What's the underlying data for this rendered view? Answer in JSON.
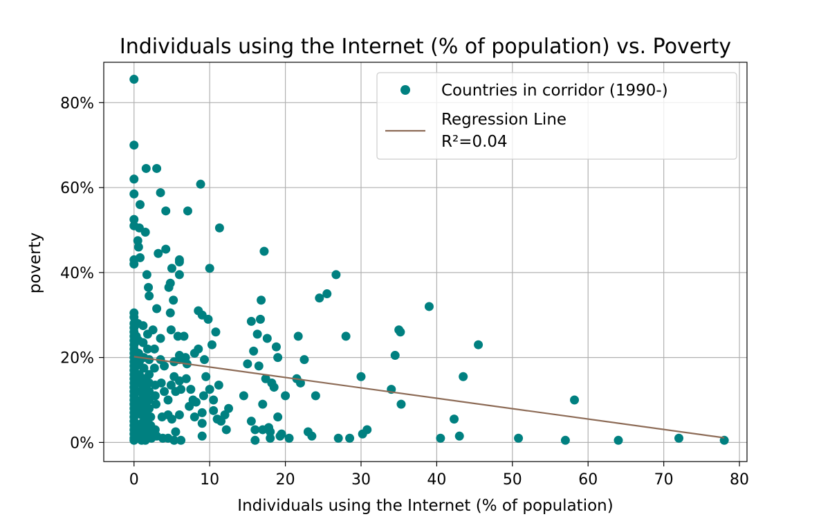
{
  "chart_data": {
    "type": "scatter",
    "title": "Individuals using the Internet (% of population) vs. Poverty",
    "xlabel": "Individuals using the Internet (% of population)",
    "ylabel": "poverty",
    "xlim": [
      -4,
      81
    ],
    "ylim": [
      -4.5,
      89.5
    ],
    "x_ticks": [
      0,
      10,
      20,
      30,
      40,
      50,
      60,
      70,
      80
    ],
    "y_ticks": [
      0,
      20,
      40,
      60,
      80
    ],
    "y_tick_labels": [
      "0%",
      "20%",
      "40%",
      "60%",
      "80%"
    ],
    "grid": true,
    "legend_position": "top-right",
    "colors": {
      "points": "#008080",
      "regression": "#8c6a55"
    },
    "series": [
      {
        "name": "Countries in corridor (1990-)",
        "kind": "scatter",
        "points": [
          [
            0.0,
            85.5
          ],
          [
            0.0,
            70.0
          ],
          [
            0.0,
            62.0
          ],
          [
            0.0,
            58.5
          ],
          [
            0.0,
            52.5
          ],
          [
            0.0,
            51.0
          ],
          [
            0.0,
            43.0
          ],
          [
            0.0,
            42.0
          ],
          [
            0.0,
            30.5
          ],
          [
            0.0,
            29.5
          ],
          [
            0.0,
            28.0
          ],
          [
            0.0,
            27.0
          ],
          [
            0.0,
            26.0
          ],
          [
            0.0,
            25.0
          ],
          [
            0.0,
            24.0
          ],
          [
            0.0,
            23.0
          ],
          [
            0.0,
            22.0
          ],
          [
            0.0,
            21.0
          ],
          [
            0.0,
            20.0
          ],
          [
            0.0,
            19.0
          ],
          [
            0.0,
            18.0
          ],
          [
            0.0,
            17.0
          ],
          [
            0.0,
            16.0
          ],
          [
            0.0,
            15.0
          ],
          [
            0.0,
            14.0
          ],
          [
            0.0,
            13.0
          ],
          [
            0.0,
            12.0
          ],
          [
            0.0,
            11.0
          ],
          [
            0.0,
            10.0
          ],
          [
            0.0,
            9.0
          ],
          [
            0.0,
            8.0
          ],
          [
            0.0,
            7.0
          ],
          [
            0.0,
            6.0
          ],
          [
            0.0,
            5.0
          ],
          [
            0.0,
            4.0
          ],
          [
            0.0,
            3.0
          ],
          [
            0.0,
            2.0
          ],
          [
            0.0,
            1.0
          ],
          [
            0.0,
            0.5
          ],
          [
            0.3,
            25.0
          ],
          [
            0.3,
            18.0
          ],
          [
            0.3,
            12.0
          ],
          [
            0.3,
            8.0
          ],
          [
            0.3,
            3.0
          ],
          [
            0.3,
            1.0
          ],
          [
            0.5,
            47.5
          ],
          [
            0.6,
            46.0
          ],
          [
            0.7,
            50.5
          ],
          [
            0.8,
            56.0
          ],
          [
            0.8,
            43.5
          ],
          [
            0.5,
            28.0
          ],
          [
            0.6,
            24.0
          ],
          [
            0.6,
            21.0
          ],
          [
            0.7,
            19.0
          ],
          [
            0.7,
            16.0
          ],
          [
            0.8,
            14.0
          ],
          [
            0.8,
            12.0
          ],
          [
            0.9,
            10.0
          ],
          [
            0.9,
            8.5
          ],
          [
            1.0,
            6.5
          ],
          [
            1.0,
            4.5
          ],
          [
            1.0,
            2.5
          ],
          [
            1.0,
            1.0
          ],
          [
            1.0,
            0.5
          ],
          [
            1.2,
            27.5
          ],
          [
            1.2,
            23.5
          ],
          [
            1.3,
            20.0
          ],
          [
            1.3,
            17.5
          ],
          [
            1.4,
            15.0
          ],
          [
            1.4,
            13.0
          ],
          [
            1.5,
            11.0
          ],
          [
            1.5,
            9.0
          ],
          [
            1.5,
            7.0
          ],
          [
            1.5,
            5.0
          ],
          [
            1.5,
            3.0
          ],
          [
            1.5,
            1.5
          ],
          [
            1.5,
            0.5
          ],
          [
            1.5,
            49.5
          ],
          [
            1.6,
            64.5
          ],
          [
            1.7,
            39.5
          ],
          [
            1.9,
            36.5
          ],
          [
            2.0,
            34.5
          ],
          [
            1.8,
            25.5
          ],
          [
            1.8,
            22.0
          ],
          [
            2.0,
            19.5
          ],
          [
            2.0,
            16.0
          ],
          [
            2.0,
            14.0
          ],
          [
            2.0,
            12.0
          ],
          [
            2.0,
            10.0
          ],
          [
            2.0,
            8.0
          ],
          [
            2.2,
            6.0
          ],
          [
            2.2,
            4.0
          ],
          [
            2.2,
            2.0
          ],
          [
            2.3,
            1.0
          ],
          [
            2.5,
            26.5
          ],
          [
            2.7,
            22.0
          ],
          [
            2.7,
            17.5
          ],
          [
            2.8,
            13.5
          ],
          [
            2.8,
            11.0
          ],
          [
            2.9,
            9.0
          ],
          [
            2.8,
            3.0
          ],
          [
            3.0,
            1.5
          ],
          [
            3.0,
            64.5
          ],
          [
            3.0,
            31.5
          ],
          [
            3.2,
            44.5
          ],
          [
            3.5,
            58.8
          ],
          [
            3.5,
            24.5
          ],
          [
            3.5,
            19.5
          ],
          [
            3.6,
            14.0
          ],
          [
            3.7,
            6.0
          ],
          [
            3.8,
            1.0
          ],
          [
            4.0,
            18.0
          ],
          [
            4.0,
            12.0
          ],
          [
            4.2,
            54.5
          ],
          [
            4.2,
            45.5
          ],
          [
            4.5,
            6.5
          ],
          [
            4.5,
            10.0
          ],
          [
            4.5,
            1.0
          ],
          [
            4.6,
            36.5
          ],
          [
            4.8,
            37.5
          ],
          [
            4.8,
            30.5
          ],
          [
            4.9,
            26.5
          ],
          [
            4.9,
            13.5
          ],
          [
            5.0,
            41.0
          ],
          [
            5.0,
            5.5
          ],
          [
            5.2,
            33.5
          ],
          [
            5.3,
            19.0
          ],
          [
            5.3,
            15.5
          ],
          [
            5.3,
            0.5
          ],
          [
            5.5,
            2.5
          ],
          [
            5.5,
            12.0
          ],
          [
            5.8,
            25.0
          ],
          [
            6.0,
            43.0
          ],
          [
            6.0,
            42.5
          ],
          [
            6.0,
            39.5
          ],
          [
            6.0,
            20.5
          ],
          [
            6.0,
            19.5
          ],
          [
            6.0,
            14.5
          ],
          [
            6.0,
            6.5
          ],
          [
            6.2,
            12.5
          ],
          [
            6.2,
            0.5
          ],
          [
            6.6,
            25.0
          ],
          [
            6.8,
            20.0
          ],
          [
            6.9,
            15.0
          ],
          [
            7.0,
            18.5
          ],
          [
            7.1,
            54.5
          ],
          [
            7.3,
            8.5
          ],
          [
            7.5,
            12.5
          ],
          [
            7.8,
            10.0
          ],
          [
            8.0,
            6.0
          ],
          [
            8.2,
            9.5
          ],
          [
            8.0,
            21.0
          ],
          [
            8.5,
            22.0
          ],
          [
            8.5,
            31.0
          ],
          [
            8.8,
            60.8
          ],
          [
            9.0,
            7.0
          ],
          [
            9.0,
            4.5
          ],
          [
            9.0,
            30.0
          ],
          [
            9.0,
            1.5
          ],
          [
            9.2,
            11.0
          ],
          [
            9.3,
            19.5
          ],
          [
            9.5,
            15.5
          ],
          [
            9.8,
            29.0
          ],
          [
            10.0,
            41.0
          ],
          [
            10.0,
            12.5
          ],
          [
            10.3,
            23.0
          ],
          [
            10.5,
            10.0
          ],
          [
            10.5,
            7.5
          ],
          [
            10.8,
            26.0
          ],
          [
            11.0,
            5.5
          ],
          [
            11.2,
            13.5
          ],
          [
            11.3,
            50.5
          ],
          [
            11.5,
            5.0
          ],
          [
            12.0,
            6.5
          ],
          [
            12.2,
            3.0
          ],
          [
            12.5,
            8.0
          ],
          [
            14.5,
            11.0
          ],
          [
            15.0,
            18.5
          ],
          [
            15.5,
            28.5
          ],
          [
            15.5,
            5.0
          ],
          [
            15.8,
            21.5
          ],
          [
            16.0,
            3.0
          ],
          [
            16.0,
            0.5
          ],
          [
            16.3,
            25.5
          ],
          [
            16.5,
            18.0
          ],
          [
            16.7,
            29.0
          ],
          [
            16.8,
            33.5
          ],
          [
            17.0,
            3.0
          ],
          [
            17.0,
            9.0
          ],
          [
            17.2,
            45.0
          ],
          [
            17.4,
            15.0
          ],
          [
            17.6,
            24.5
          ],
          [
            17.8,
            3.5
          ],
          [
            18.0,
            1.0
          ],
          [
            18.0,
            2.5
          ],
          [
            18.2,
            14.0
          ],
          [
            18.5,
            13.0
          ],
          [
            18.8,
            22.5
          ],
          [
            19.0,
            20.0
          ],
          [
            19.0,
            6.0
          ],
          [
            19.3,
            1.5
          ],
          [
            19.5,
            2.0
          ],
          [
            20.0,
            11.0
          ],
          [
            20.5,
            1.0
          ],
          [
            21.5,
            15.0
          ],
          [
            21.7,
            25.0
          ],
          [
            22.0,
            14.0
          ],
          [
            22.5,
            19.5
          ],
          [
            23.0,
            2.5
          ],
          [
            23.5,
            1.5
          ],
          [
            24.0,
            11.0
          ],
          [
            24.5,
            34.0
          ],
          [
            25.5,
            35.0
          ],
          [
            26.7,
            39.5
          ],
          [
            27.0,
            1.0
          ],
          [
            28.0,
            25.0
          ],
          [
            28.5,
            1.0
          ],
          [
            30.0,
            15.5
          ],
          [
            30.2,
            2.0
          ],
          [
            30.8,
            3.0
          ],
          [
            34.0,
            12.5
          ],
          [
            34.5,
            20.5
          ],
          [
            35.0,
            26.5
          ],
          [
            35.2,
            26.0
          ],
          [
            35.3,
            9.0
          ],
          [
            39.0,
            32.0
          ],
          [
            40.5,
            1.0
          ],
          [
            42.3,
            5.5
          ],
          [
            43.0,
            1.5
          ],
          [
            43.5,
            15.5
          ],
          [
            45.5,
            23.0
          ],
          [
            50.8,
            1.0
          ],
          [
            57.0,
            0.5
          ],
          [
            58.2,
            10.0
          ],
          [
            64.0,
            0.5
          ],
          [
            72.0,
            1.0
          ],
          [
            78.0,
            0.5
          ]
        ]
      },
      {
        "name": "Regression Line",
        "name_line2": "R²=0.04",
        "kind": "line",
        "x": [
          0,
          78
        ],
        "y": [
          20.2,
          1.1
        ]
      }
    ]
  }
}
